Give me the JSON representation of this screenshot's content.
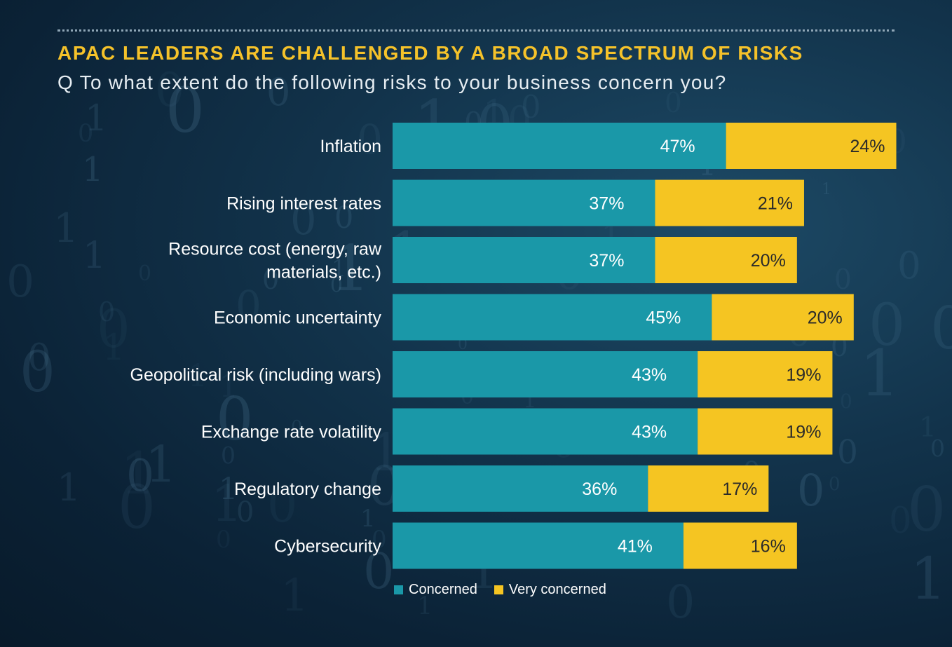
{
  "title": "APAC LEADERS ARE CHALLENGED BY A BROAD SPECTRUM OF RISKS",
  "subtitle": "Q To what extent do the following risks to your business concern you?",
  "colors": {
    "concerned": "#1a98a8",
    "very_concerned": "#f5c522"
  },
  "legend": {
    "concerned": "Concerned",
    "very_concerned": "Very concerned"
  },
  "chart_data": {
    "type": "bar",
    "orientation": "horizontal",
    "stacked": true,
    "categories": [
      [
        "Inflation"
      ],
      [
        "Rising interest rates"
      ],
      [
        "Resource cost (energy, raw",
        "materials, etc.)"
      ],
      [
        "Economic uncertainty"
      ],
      [
        "Geopolitical risk (including wars)"
      ],
      [
        "Exchange rate volatility"
      ],
      [
        "Regulatory change"
      ],
      [
        "Cybersecurity"
      ]
    ],
    "series": [
      {
        "name": "Concerned",
        "values": [
          47,
          37,
          37,
          45,
          43,
          43,
          36,
          41
        ],
        "labels": [
          "47%",
          "37%",
          "37%",
          "45%",
          "43%",
          "43%",
          "36%",
          "41%"
        ]
      },
      {
        "name": "Very concerned",
        "values": [
          24,
          21,
          20,
          20,
          19,
          19,
          17,
          16
        ],
        "labels": [
          "24%",
          "21%",
          "20%",
          "20%",
          "19%",
          "19%",
          "17%",
          "16%"
        ]
      }
    ],
    "value_unit": "%",
    "legend_position": "bottom-left",
    "grid": false
  }
}
